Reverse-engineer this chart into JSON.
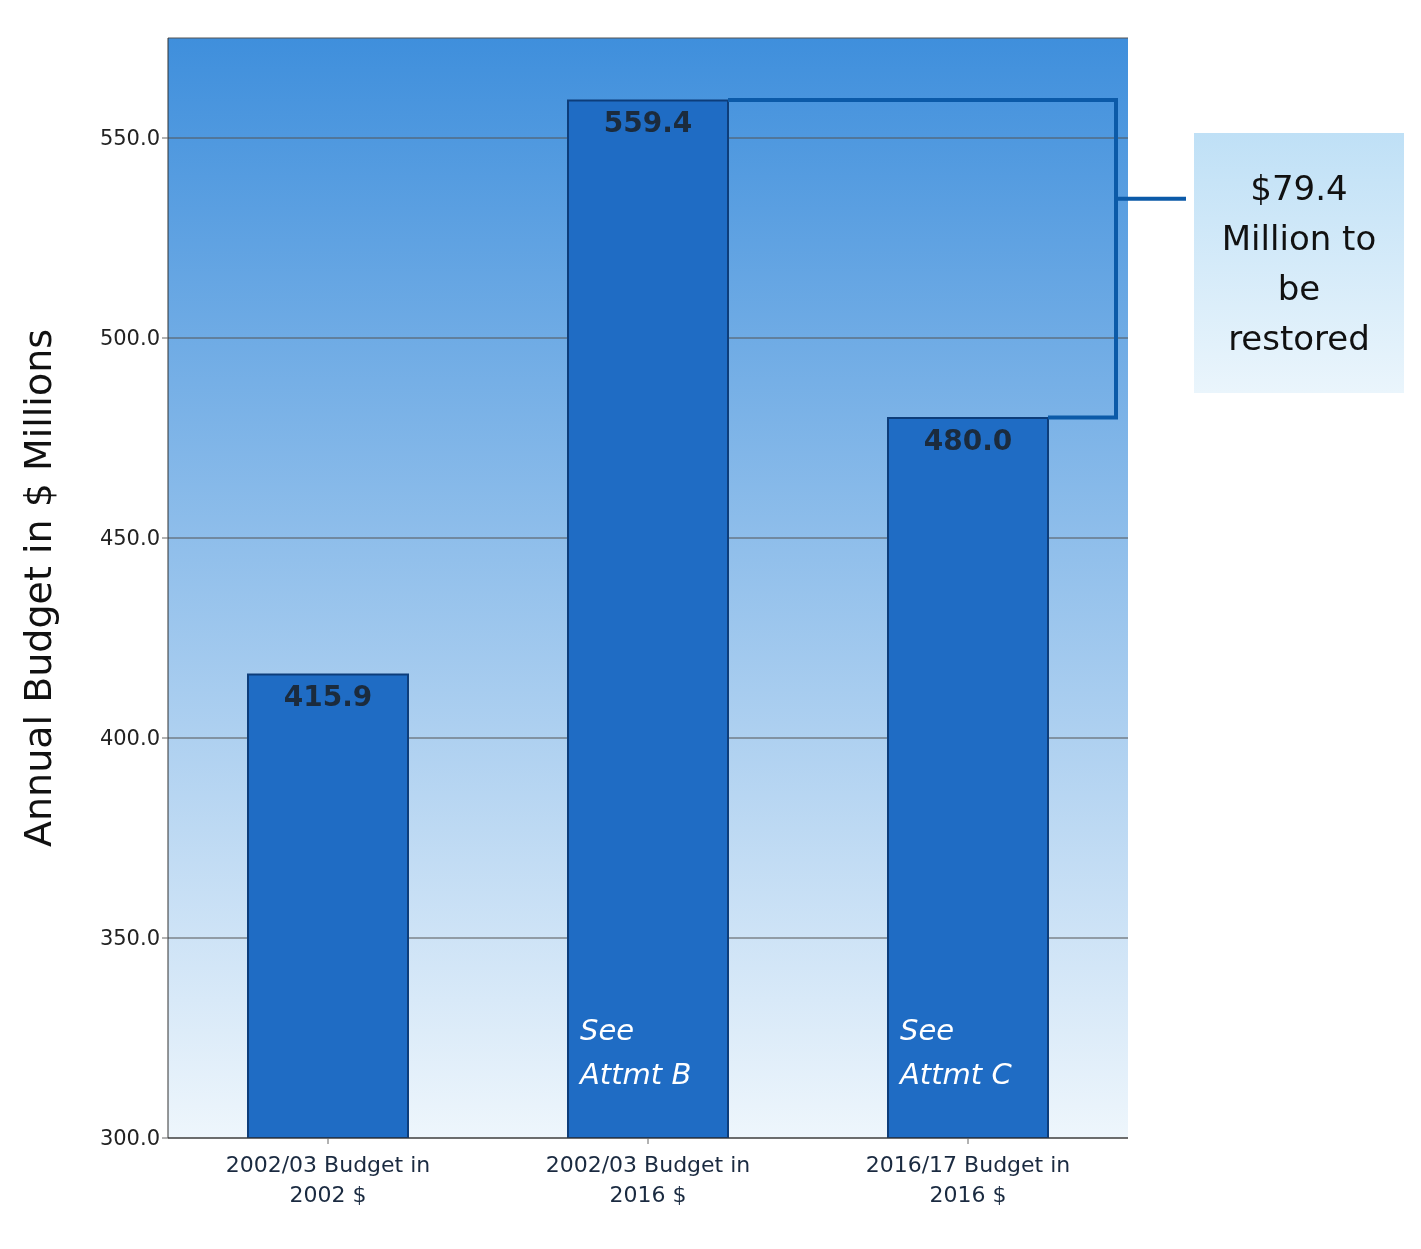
{
  "chart_data": {
    "type": "bar",
    "ylabel": "Annual Budget in $ Millions",
    "categories": [
      "2002/03 Budget in 2002 $",
      "2002/03 Budget in 2016 $",
      "2016/17 Budget in 2016 $"
    ],
    "values": [
      415.9,
      559.4,
      480.0
    ],
    "value_labels": [
      "415.9",
      "559.4",
      "480.0"
    ],
    "color": "#1f6cc4",
    "ylim": [
      300,
      575
    ],
    "yticks": [
      {
        "value": 300,
        "label": "300.0"
      },
      {
        "value": 350,
        "label": "350.0"
      },
      {
        "value": 400,
        "label": "400.0"
      },
      {
        "value": 450,
        "label": "450.0"
      },
      {
        "value": 500,
        "label": "500.0"
      },
      {
        "value": 550,
        "label": "550.0"
      }
    ],
    "grid": "y",
    "annotations": [
      "See Attmt B",
      "See Attmt C",
      "$79.4 Million to be restored"
    ]
  }
}
